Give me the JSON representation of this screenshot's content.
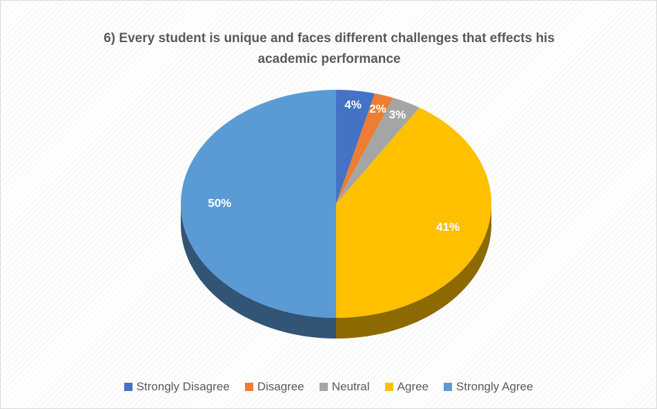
{
  "chart_data": {
    "type": "pie",
    "title": "6) Every student is unique and faces different challenges that effects his academic performance",
    "categories": [
      "Strongly Disagree",
      "Disagree",
      "Neutral",
      "Agree",
      "Strongly Agree"
    ],
    "values": [
      4,
      2,
      3,
      41,
      50
    ],
    "value_labels": [
      "4%",
      "2%",
      "3%",
      "41%",
      "50%"
    ],
    "colors": [
      "#4472c4",
      "#ed7d31",
      "#a5a5a5",
      "#ffc000",
      "#5b9bd5"
    ],
    "legend": "bottom"
  }
}
